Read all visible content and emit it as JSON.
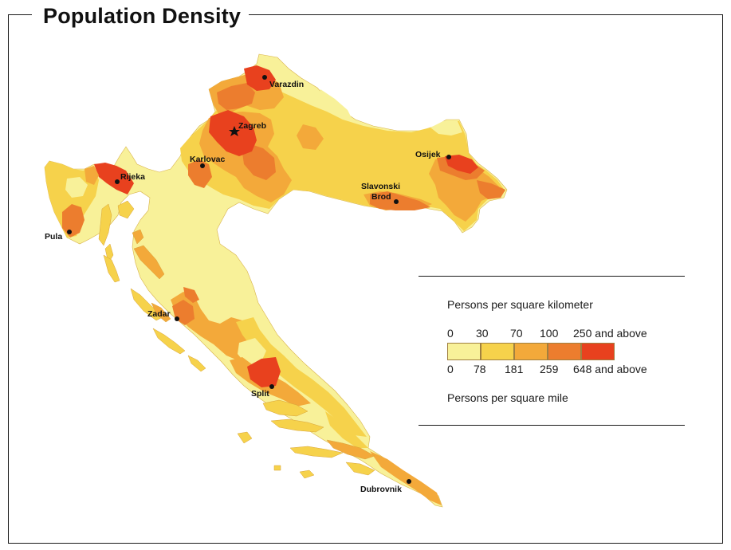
{
  "title": "Population Density",
  "colors": {
    "class1": "#f8f199",
    "class2": "#f6d24b",
    "class3": "#f3a93a",
    "class4": "#ec7d2e",
    "class5": "#e8411e",
    "frame": "#1a1a1a"
  },
  "legend": {
    "km_title": "Persons per square kilometer",
    "km_breaks": [
      "0",
      "30",
      "70",
      "100",
      "250 and above"
    ],
    "mile_breaks": [
      "0",
      "78",
      "181",
      "259",
      "648 and above"
    ],
    "mile_title": "Persons per square mile"
  },
  "cities": [
    {
      "name": "Varazdin",
      "symbol": "dot"
    },
    {
      "name": "Zagreb",
      "symbol": "star"
    },
    {
      "name": "Karlovac",
      "symbol": "dot"
    },
    {
      "name": "Osijek",
      "symbol": "dot"
    },
    {
      "name": "Rijeka",
      "symbol": "dot"
    },
    {
      "name": "Slavonski",
      "symbol": "dot"
    },
    {
      "name": "Brod",
      "symbol": "none"
    },
    {
      "name": "Pula",
      "symbol": "dot"
    },
    {
      "name": "Zadar",
      "symbol": "dot"
    },
    {
      "name": "Split",
      "symbol": "dot"
    },
    {
      "name": "Dubrovnik",
      "symbol": "dot"
    }
  ]
}
